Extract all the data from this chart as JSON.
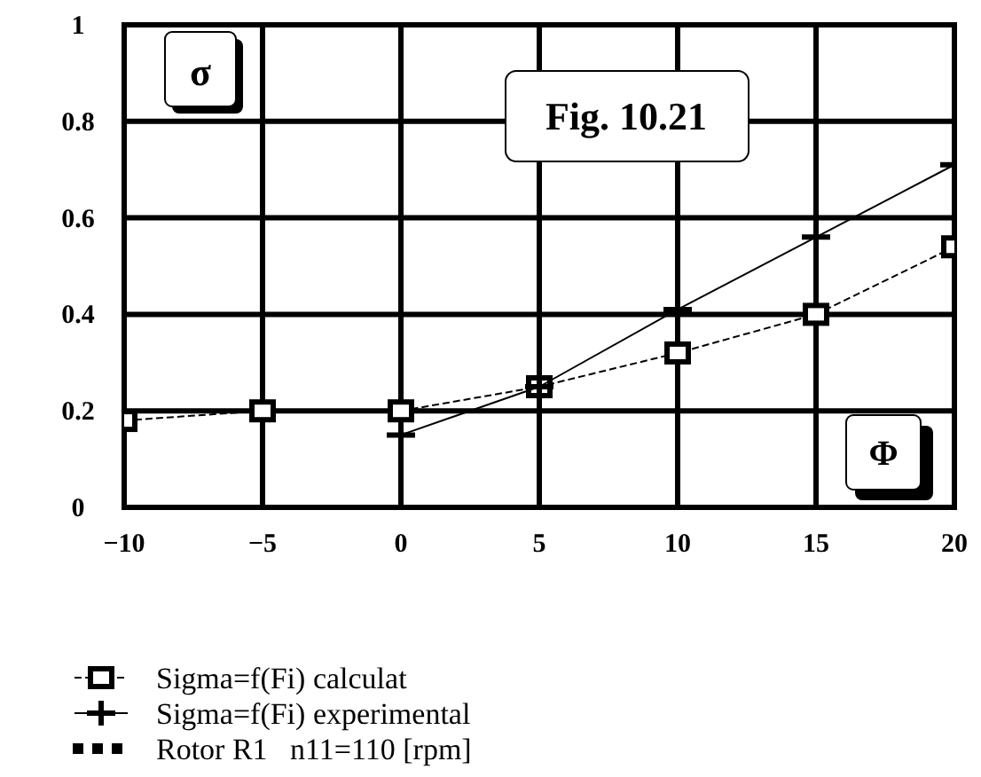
{
  "chart_data": {
    "type": "line",
    "title": "Fig. 10.21",
    "xlabel": "Φ",
    "ylabel": "σ",
    "x": [
      -10,
      -5,
      0,
      5,
      10,
      15,
      20
    ],
    "series": [
      {
        "name": "Sigma=f(Fi) calculat",
        "color": "#000000",
        "marker": "square",
        "line_style": "dashed",
        "values": [
          0.18,
          0.2,
          0.2,
          0.25,
          0.32,
          0.4,
          0.54
        ]
      },
      {
        "name": "Sigma=f(Fi) experimental",
        "color": "#000000",
        "marker": "cross",
        "line_style": "solid",
        "values": [
          null,
          null,
          0.15,
          0.25,
          0.41,
          0.56,
          0.71
        ]
      }
    ],
    "annotations": [
      "Rotor R1   n11=110 [rpm]"
    ],
    "xlim": [
      -10,
      20
    ],
    "xticks": [
      {
        "value": -10,
        "label": "−10"
      },
      {
        "value": -5,
        "label": "−5"
      },
      0,
      5,
      10,
      15,
      20
    ],
    "ylim": [
      0,
      1
    ],
    "yticks": [
      0,
      0.2,
      0.4,
      0.6,
      0.8,
      1
    ],
    "grid": true,
    "legend": "bottom"
  }
}
